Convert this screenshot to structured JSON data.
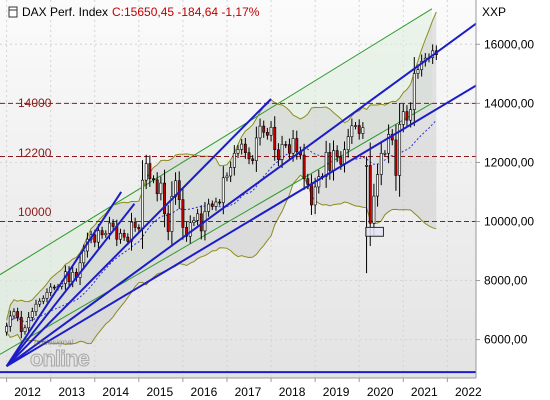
{
  "header": {
    "title": "DAX Perf. Index",
    "quote": "C:15650,45 -184,64 -1,17%",
    "axis_unit": "XXP"
  },
  "watermark": {
    "line1": "tradesignal",
    "line2": "online"
  },
  "colors": {
    "candle_up": "#f2f2f2",
    "candle_down": "#c00000",
    "trendline": "#1c1cc8",
    "support_line": "#8b1a1a",
    "channel": "#2e9b2e",
    "bollinger": "#8c8c1e",
    "moving_average": "#3030d0",
    "plot_bg_top": "#fbfbfb",
    "plot_bg_bottom": "#e6e6e6"
  },
  "chart_data": {
    "type": "candlestick",
    "title": "DAX Perf. Index",
    "timeframe": "monthly",
    "x_ticks": [
      "2012",
      "2013",
      "2014",
      "2015",
      "2016",
      "2017",
      "2018",
      "2019",
      "2020",
      "2021",
      "2022"
    ],
    "y_ticks": [
      "6000,00",
      "8000,00",
      "10000,00",
      "12000,00",
      "14000,00",
      "16000,00"
    ],
    "ylim": [
      4700,
      17500
    ],
    "xlim": [
      2011.85,
      2022.65
    ],
    "grid": true,
    "last_close": 15650.45,
    "change": -184.64,
    "change_pct": -1.17,
    "horizontal_levels": [
      {
        "label": "14000",
        "value": 14000
      },
      {
        "label": "12200",
        "value": 12200
      },
      {
        "label": "10000",
        "value": 10000
      }
    ],
    "bottom_line": 4900,
    "highlight_box": {
      "x": [
        2020.15,
        2020.55
      ],
      "y": [
        9500,
        9800
      ]
    },
    "trendlines": [
      {
        "x": [
          2012.0,
          2014.6
        ],
        "y": [
          5100,
          11000
        ]
      },
      {
        "x": [
          2012.0,
          2014.9
        ],
        "y": [
          5100,
          10600
        ]
      },
      {
        "x": [
          2012.0,
          2018.0
        ],
        "y": [
          5100,
          14150
        ]
      },
      {
        "x": [
          2012.0,
          2022.65
        ],
        "y": [
          5100,
          16700
        ]
      },
      {
        "x": [
          2012.0,
          2022.65
        ],
        "y": [
          5100,
          14600
        ]
      }
    ],
    "channel": {
      "upper": [
        [
          2011.85,
          8200
        ],
        [
          2021.65,
          17200
        ]
      ],
      "lower": [
        [
          2011.85,
          5500
        ],
        [
          2021.65,
          14000
        ]
      ]
    },
    "closes": [
      6450,
      6800,
      6950,
      6750,
      6270,
      6400,
      6750,
      6950,
      7200,
      7300,
      7400,
      7600,
      7780,
      7750,
      7800,
      7900,
      8300,
      7960,
      8280,
      8100,
      8600,
      9000,
      9400,
      9550,
      9300,
      9690,
      9550,
      9600,
      9950,
      9830,
      9400,
      9600,
      9470,
      9330,
      9980,
      9800,
      9750,
      11400,
      11960,
      11450,
      11410,
      10940,
      11300,
      10260,
      9660,
      10850,
      11380,
      10740,
      9800,
      9500,
      9960,
      10040,
      10260,
      9680,
      10340,
      10590,
      10510,
      10660,
      10640,
      11480,
      11540,
      11830,
      12310,
      12440,
      12620,
      12330,
      12120,
      12060,
      12830,
      13230,
      13020,
      12920,
      13190,
      12430,
      12100,
      12610,
      12600,
      12310,
      12810,
      12360,
      12250,
      11450,
      11260,
      10560,
      11170,
      11520,
      11530,
      12340,
      11730,
      12400,
      12190,
      11940,
      12430,
      12870,
      13240,
      13250,
      12980,
      13180,
      11900,
      9940,
      10860,
      11590,
      12310,
      12310,
      12950,
      12760,
      11560,
      13290,
      13720,
      13430,
      13790,
      15010,
      15140,
      15420,
      15530,
      15550,
      15780,
      15650
    ]
  }
}
